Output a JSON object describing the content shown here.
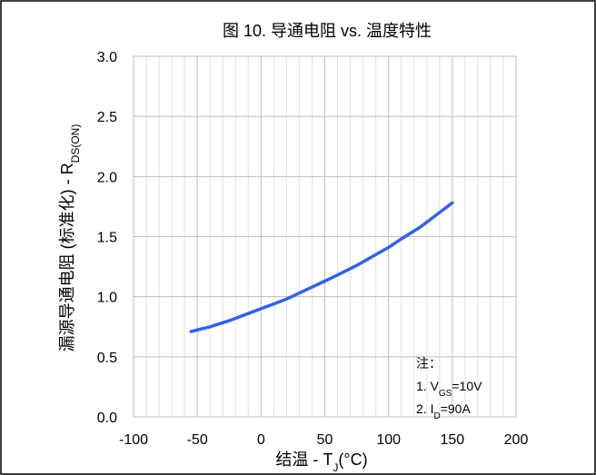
{
  "chart_data": {
    "type": "line",
    "title": "图 10. 导通电阻 vs. 温度特性",
    "xlabel": {
      "main": "结温 - T",
      "sub": "J",
      "unit": "(°C)"
    },
    "ylabel": {
      "main": "漏源导通电阻 (标准化) - R",
      "sub": "DS(ON)"
    },
    "xlim": [
      -100,
      200
    ],
    "ylim": [
      0,
      3
    ],
    "x_ticks": [
      "-100",
      "-50",
      "0",
      "50",
      "100",
      "150",
      "200"
    ],
    "y_ticks": [
      "0.0",
      "0.5",
      "1.0",
      "1.5",
      "2.0",
      "2.5",
      "3.0"
    ],
    "grid": true,
    "line_color": "#3461e6",
    "series": [
      {
        "x": [
          -55,
          -40,
          -25,
          -10,
          0,
          10,
          20,
          30,
          40,
          50,
          60,
          75,
          90,
          100,
          110,
          125,
          140,
          150
        ],
        "values": [
          0.71,
          0.75,
          0.8,
          0.86,
          0.9,
          0.94,
          0.98,
          1.03,
          1.08,
          1.13,
          1.18,
          1.26,
          1.35,
          1.41,
          1.48,
          1.58,
          1.7,
          1.78
        ]
      }
    ],
    "notes": {
      "heading": "注：",
      "line1": {
        "prefix": "1. V",
        "sub": "GS",
        "suffix": "=10V"
      },
      "line2": {
        "prefix": "2. I",
        "sub": "D",
        "suffix": "=90A"
      }
    }
  }
}
